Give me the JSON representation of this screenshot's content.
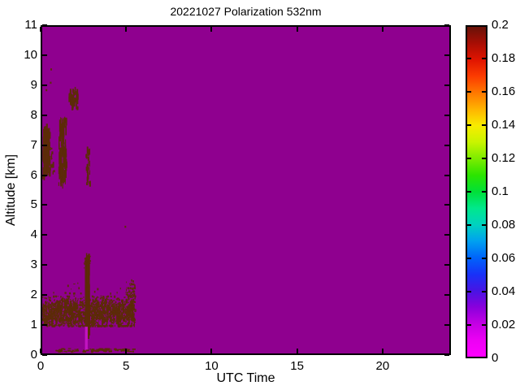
{
  "title": "20221027 Polarization 532nm",
  "axes": {
    "xlabel": "UTC Time",
    "ylabel": "Altitude [km]",
    "x_range": [
      0,
      24
    ],
    "y_range": [
      0,
      11
    ],
    "x_ticks": [
      0,
      5,
      10,
      15,
      20
    ],
    "y_ticks": [
      0,
      1,
      2,
      3,
      4,
      5,
      6,
      7,
      8,
      9,
      10,
      11
    ]
  },
  "colorbar": {
    "range": [
      0,
      0.2
    ],
    "tick_labels": [
      "0",
      "0.02",
      "0.04",
      "0.06",
      "0.08",
      "0.1",
      "0.12",
      "0.14",
      "0.16",
      "0.18",
      "0.2"
    ],
    "tick_values": [
      0,
      0.02,
      0.04,
      0.06,
      0.08,
      0.1,
      0.12,
      0.14,
      0.16,
      0.18,
      0.2
    ],
    "gradient": [
      {
        "v": 0.0,
        "c": "#FF00FF"
      },
      {
        "v": 0.01,
        "c": "#EC00F4"
      },
      {
        "v": 0.02,
        "c": "#C400E4"
      },
      {
        "v": 0.03,
        "c": "#8A00DC"
      },
      {
        "v": 0.04,
        "c": "#4814E4"
      },
      {
        "v": 0.05,
        "c": "#1832F8"
      },
      {
        "v": 0.06,
        "c": "#0064FA"
      },
      {
        "v": 0.07,
        "c": "#00A0F0"
      },
      {
        "v": 0.08,
        "c": "#00D2C0"
      },
      {
        "v": 0.09,
        "c": "#00E88C"
      },
      {
        "v": 0.1,
        "c": "#00E038"
      },
      {
        "v": 0.11,
        "c": "#2CE400"
      },
      {
        "v": 0.12,
        "c": "#7CEC00"
      },
      {
        "v": 0.13,
        "c": "#C8F400"
      },
      {
        "v": 0.14,
        "c": "#F8EC00"
      },
      {
        "v": 0.15,
        "c": "#FFB400"
      },
      {
        "v": 0.16,
        "c": "#FF7800"
      },
      {
        "v": 0.17,
        "c": "#FC3C00"
      },
      {
        "v": 0.18,
        "c": "#E01400"
      },
      {
        "v": 0.19,
        "c": "#A80E04"
      },
      {
        "v": 0.2,
        "c": "#681208"
      }
    ]
  },
  "colors": {
    "figure_background": "#FFFFFF",
    "plot_background": "#8F008F",
    "feature_dark": "#5C2B08",
    "bright_column": "#C113C1",
    "frame": "#000000"
  },
  "chart_data": {
    "type": "heatmap",
    "title": "20221027 Polarization 532nm",
    "xlabel": "UTC Time",
    "ylabel": "Altitude [km]",
    "xlim": [
      0,
      24
    ],
    "ylim": [
      0,
      11
    ],
    "value_range": [
      0,
      0.2
    ],
    "background_level": 0.02,
    "features": [
      {
        "kind": "speckle",
        "name": "aerosol-band",
        "t": [
          0.0,
          5.45
        ],
        "alt": [
          0.95,
          1.95
        ],
        "center": 1.38,
        "n": 1500,
        "value": 0.2
      },
      {
        "kind": "dashes",
        "name": "aerosol-band-texture",
        "t": [
          0.0,
          5.45
        ],
        "alt": [
          1.05,
          1.75
        ],
        "n": 220,
        "len": [
          2,
          9
        ],
        "value": 0.2
      },
      {
        "kind": "speckle",
        "name": "band-right-tail",
        "t": [
          4.9,
          5.45
        ],
        "alt": [
          1.6,
          2.5
        ],
        "center": 2.0,
        "n": 80,
        "value": 0.2
      },
      {
        "kind": "speckle",
        "name": "band-upper-scatter",
        "t": [
          0.3,
          5.2
        ],
        "alt": [
          1.8,
          2.6
        ],
        "center": 2.0,
        "n": 40,
        "value": 0.2
      },
      {
        "kind": "dashes",
        "name": "cloud-streaks-0006UTC",
        "t": [
          0.0,
          0.4
        ],
        "alt": [
          5.9,
          7.6
        ],
        "n": 85,
        "len": [
          3,
          14
        ],
        "value": 0.2
      },
      {
        "kind": "dashes",
        "name": "cloud-streaks-0006UTC-core",
        "t": [
          0.03,
          0.35
        ],
        "alt": [
          6.2,
          7.5
        ],
        "n": 45,
        "len": [
          6,
          18
        ],
        "value": 0.2
      },
      {
        "kind": "dashes",
        "name": "cloud-wisps-0030UTC",
        "t": [
          0.3,
          0.65
        ],
        "alt": [
          6.0,
          6.9
        ],
        "n": 18,
        "len": [
          2,
          8
        ],
        "value": 0.2
      },
      {
        "kind": "dashes",
        "name": "cloud-streaks-0100UTC",
        "t": [
          0.95,
          1.4
        ],
        "alt": [
          5.7,
          7.9
        ],
        "n": 125,
        "len": [
          4,
          16
        ],
        "value": 0.2
      },
      {
        "kind": "dashes",
        "name": "cloud-blob-0145UTC-8p5km",
        "t": [
          1.55,
          2.05
        ],
        "alt": [
          8.25,
          8.85
        ],
        "n": 50,
        "len": [
          3,
          10
        ],
        "value": 0.2
      },
      {
        "kind": "dashes",
        "name": "cloud-wisps-0240UTC",
        "t": [
          2.5,
          2.8
        ],
        "alt": [
          5.7,
          6.9
        ],
        "n": 26,
        "len": [
          3,
          9
        ],
        "value": 0.2
      },
      {
        "kind": "dashes",
        "name": "plume-core-0236UTC",
        "t": [
          2.52,
          2.72
        ],
        "alt": [
          0.9,
          3.0
        ],
        "n": 200,
        "len": [
          10,
          34
        ],
        "value": 0.2
      },
      {
        "kind": "speckle",
        "name": "plume-top-scatter",
        "t": [
          2.45,
          2.8
        ],
        "alt": [
          2.9,
          3.3
        ],
        "center": 3.05,
        "n": 25,
        "value": 0.2
      },
      {
        "kind": "solid",
        "name": "plume-bright-column",
        "t": [
          2.52,
          2.68
        ],
        "alt": [
          0.12,
          0.9
        ],
        "color": "bright",
        "value": 0.015
      },
      {
        "kind": "dotline",
        "name": "near-surface-dots",
        "t": [
          0.75,
          5.35
        ],
        "alt": [
          0.08,
          0.18
        ],
        "n": 95,
        "value": 0.2
      },
      {
        "kind": "points",
        "name": "isolated-dots",
        "pts": [
          [
            0.48,
            9.6
          ],
          [
            0.45,
            9.15
          ],
          [
            4.85,
            4.3
          ],
          [
            0.2,
            8.9
          ]
        ],
        "value": 0.2
      }
    ]
  }
}
